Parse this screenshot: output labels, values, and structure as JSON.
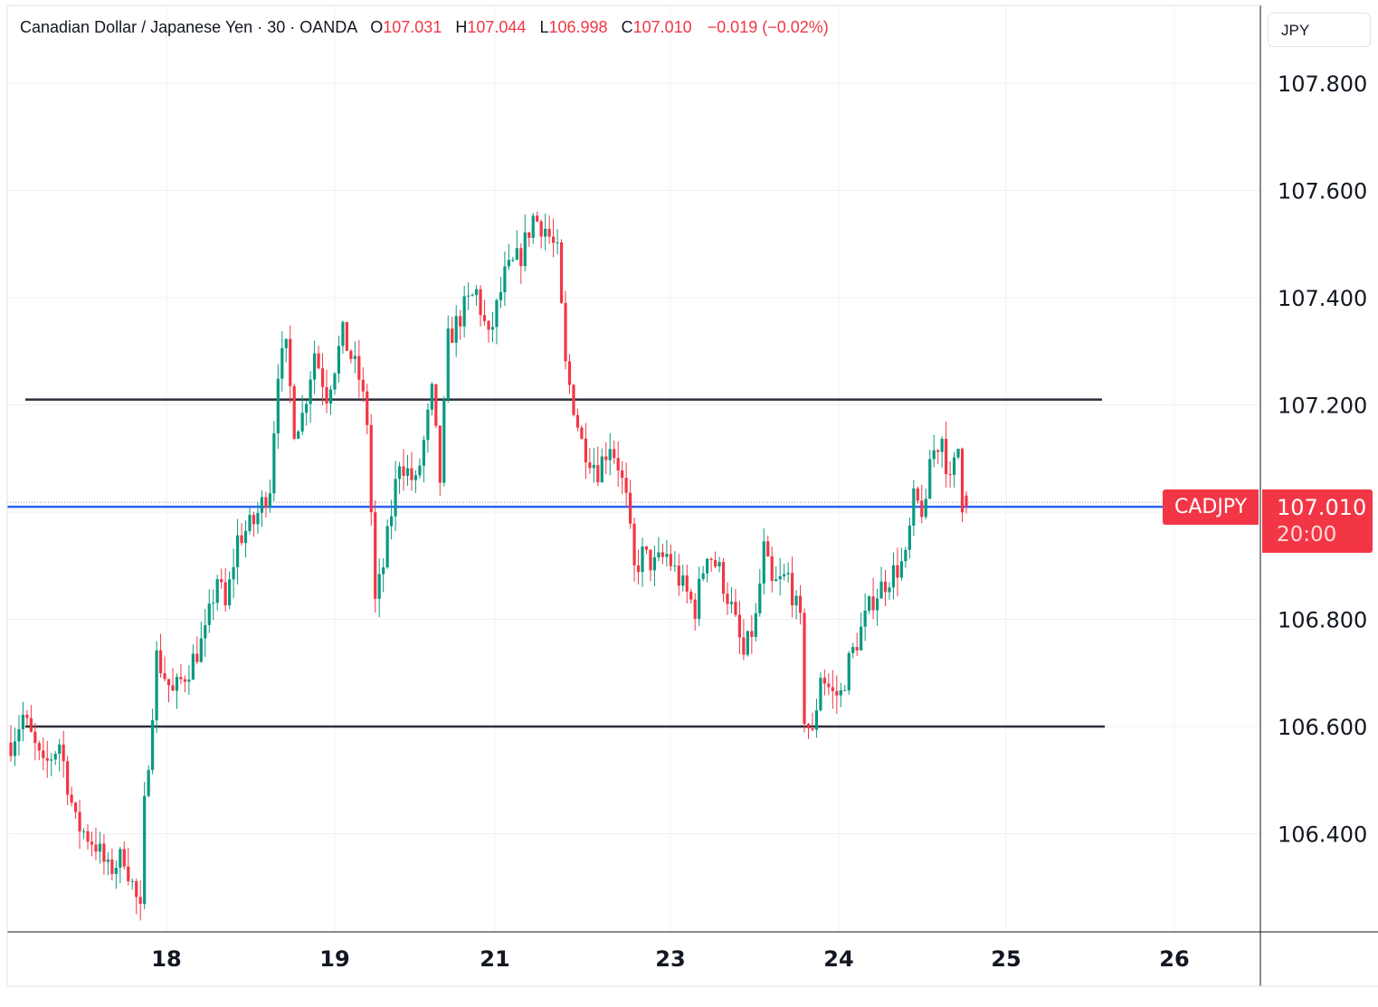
{
  "header": {
    "symbol": "Canadian Dollar / Japanese Yen · 30 · OANDA",
    "open_label": "O",
    "open": "107.031",
    "high_label": "H",
    "high": "107.044",
    "low_label": "L",
    "low": "106.998",
    "close_label": "C",
    "close": "107.010",
    "change": "−0.019 (−0.02%)"
  },
  "currency": "JPY",
  "last_price": {
    "symbol": "CADJPY",
    "price": "107.010",
    "countdown": "20:00"
  },
  "colors": {
    "up": "#089981",
    "down": "#f23645",
    "price_line": "#2962ff",
    "level_line": "#2a2e39",
    "grid": "#eef0f3"
  },
  "chart_data": {
    "type": "candlestick",
    "ylim": [
      106.22,
      107.95
    ],
    "yticks": [
      107.8,
      107.6,
      107.4,
      107.2,
      106.8,
      106.6,
      106.4
    ],
    "ytick_labels": [
      "107.800",
      "107.600",
      "107.400",
      "107.200",
      "106.800",
      "106.600",
      "106.400"
    ],
    "xticks": [
      "18",
      "19",
      "21",
      "23",
      "24",
      "25",
      "26"
    ],
    "horizontal_levels": [
      107.21,
      106.6
    ],
    "last_price": 107.01,
    "path": [
      [
        0,
        106.57
      ],
      [
        3,
        106.62
      ],
      [
        8,
        106.52
      ],
      [
        12,
        106.57
      ],
      [
        16,
        106.42
      ],
      [
        21,
        106.38
      ],
      [
        24,
        106.33
      ],
      [
        28,
        106.36
      ],
      [
        32,
        106.25
      ],
      [
        33,
        106.45
      ],
      [
        36,
        106.73
      ],
      [
        40,
        106.66
      ],
      [
        44,
        106.71
      ],
      [
        48,
        106.77
      ],
      [
        51,
        106.88
      ],
      [
        53,
        106.82
      ],
      [
        56,
        106.95
      ],
      [
        60,
        106.98
      ],
      [
        64,
        107.05
      ],
      [
        66,
        107.27
      ],
      [
        68,
        107.3
      ],
      [
        70,
        107.16
      ],
      [
        72,
        107.18
      ],
      [
        75,
        107.3
      ],
      [
        78,
        107.22
      ],
      [
        82,
        107.33
      ],
      [
        86,
        107.25
      ],
      [
        88,
        107.17
      ],
      [
        90,
        106.83
      ],
      [
        92,
        106.9
      ],
      [
        96,
        107.1
      ],
      [
        100,
        107.05
      ],
      [
        102,
        107.13
      ],
      [
        104,
        107.22
      ],
      [
        106,
        107.06
      ],
      [
        108,
        107.32
      ],
      [
        112,
        107.38
      ],
      [
        115,
        107.41
      ],
      [
        118,
        107.32
      ],
      [
        122,
        107.44
      ],
      [
        126,
        107.48
      ],
      [
        129,
        107.55
      ],
      [
        132,
        107.53
      ],
      [
        135,
        107.48
      ],
      [
        137,
        107.27
      ],
      [
        139,
        107.2
      ],
      [
        141,
        107.13
      ],
      [
        145,
        107.08
      ],
      [
        148,
        107.13
      ],
      [
        150,
        107.09
      ],
      [
        152,
        107.02
      ],
      [
        154,
        106.89
      ],
      [
        156,
        106.92
      ],
      [
        159,
        106.9
      ],
      [
        162,
        106.92
      ],
      [
        166,
        106.86
      ],
      [
        169,
        106.82
      ],
      [
        172,
        106.93
      ],
      [
        175,
        106.89
      ],
      [
        178,
        106.82
      ],
      [
        181,
        106.73
      ],
      [
        184,
        106.8
      ],
      [
        186,
        106.93
      ],
      [
        188,
        106.86
      ],
      [
        192,
        106.88
      ],
      [
        195,
        106.79
      ],
      [
        196,
        106.62
      ],
      [
        198,
        106.58
      ],
      [
        200,
        106.7
      ],
      [
        203,
        106.66
      ],
      [
        205,
        106.66
      ],
      [
        207,
        106.72
      ],
      [
        210,
        106.78
      ],
      [
        213,
        106.84
      ],
      [
        217,
        106.88
      ],
      [
        221,
        106.91
      ],
      [
        223,
        107.02
      ],
      [
        226,
        107.0
      ],
      [
        227,
        107.1
      ],
      [
        230,
        107.14
      ],
      [
        232,
        107.05
      ],
      [
        234,
        107.12
      ],
      [
        235,
        107.02
      ],
      [
        236,
        107.01
      ]
    ]
  }
}
